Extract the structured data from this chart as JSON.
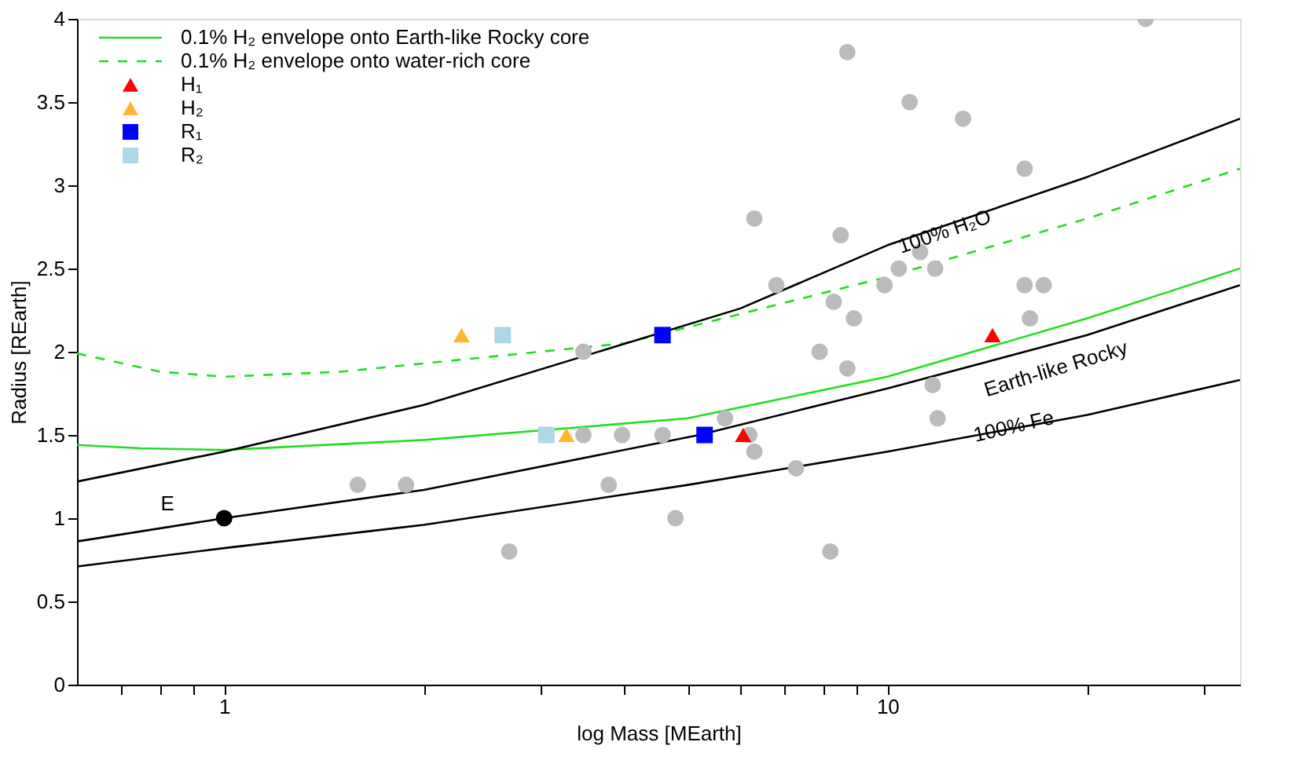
{
  "chart_data": {
    "type": "scatter",
    "xlabel": "log Mass [MEarth]",
    "ylabel": "Radius [REarth]",
    "log": "x",
    "xlim": [
      0.6,
      34
    ],
    "ylim": [
      0,
      4
    ],
    "xticks": [
      {
        "value": 0.7,
        "label": null
      },
      {
        "value": 0.8,
        "label": null
      },
      {
        "value": 0.9,
        "label": null
      },
      1,
      {
        "value": 2,
        "label": null
      },
      {
        "value": 3,
        "label": null
      },
      {
        "value": 4,
        "label": null
      },
      {
        "value": 5,
        "label": null
      },
      {
        "value": 6,
        "label": null
      },
      {
        "value": 7,
        "label": null
      },
      {
        "value": 8,
        "label": null
      },
      {
        "value": 9,
        "label": null
      },
      10,
      {
        "value": 20,
        "label": null
      },
      {
        "value": 30,
        "label": null
      }
    ],
    "yticks": [
      0,
      0.5,
      1,
      1.5,
      2,
      2.5,
      3,
      3.5,
      4
    ],
    "grid": false,
    "legend": "top left",
    "series": [
      {
        "name": "0.1% H₂ envelope onto Earth-like Rocky core",
        "type": "line",
        "line_style": "solid",
        "color": "#22dd22",
        "x": [
          0.6,
          0.75,
          1,
          2,
          5,
          10,
          20,
          34
        ],
        "values": [
          1.44,
          1.42,
          1.41,
          1.47,
          1.6,
          1.85,
          2.2,
          2.5
        ]
      },
      {
        "name": "0.1% H₂ envelope onto water-rich core",
        "type": "line",
        "line_style": "dashed",
        "color": "#22dd22",
        "x": [
          0.6,
          0.8,
          1,
          1.5,
          2,
          4,
          10,
          20,
          34
        ],
        "values": [
          1.99,
          1.88,
          1.85,
          1.88,
          1.93,
          2.05,
          2.45,
          2.8,
          3.1
        ]
      },
      {
        "type": "line",
        "line_style": "solid",
        "color": "#000000",
        "x": [
          0.6,
          1,
          2,
          6,
          10,
          20,
          34
        ],
        "values": [
          1.22,
          1.4,
          1.68,
          2.26,
          2.64,
          3.05,
          3.4
        ]
      },
      {
        "type": "line",
        "line_style": "solid",
        "color": "#000000",
        "x": [
          0.6,
          1,
          2,
          5.2,
          10,
          20,
          34
        ],
        "values": [
          0.86,
          1.0,
          1.17,
          1.5,
          1.78,
          2.1,
          2.4
        ]
      },
      {
        "type": "line",
        "line_style": "solid",
        "color": "#000000",
        "x": [
          0.6,
          1,
          2,
          5,
          10,
          20,
          34
        ],
        "values": [
          0.71,
          0.82,
          0.96,
          1.2,
          1.4,
          1.62,
          1.83
        ]
      },
      {
        "marker": "circle",
        "color": "#bbbbbb",
        "x": [
          1.59,
          1.88,
          2.69,
          3.48,
          3.48,
          3.98,
          4.58,
          5.69,
          6.19,
          6.3,
          7.28,
          3.8,
          4.79,
          8.2,
          11.7,
          11.9,
          24.5,
          8.7,
          10.8,
          13.0,
          16.1,
          6.3,
          8.5,
          11.2,
          10.4,
          11.8,
          6.8,
          9.9,
          16.1,
          17.2,
          8.3,
          8.9,
          16.4,
          7.9,
          8.7
        ],
        "values": [
          1.2,
          1.2,
          0.8,
          1.5,
          2.0,
          1.5,
          1.5,
          1.6,
          1.5,
          1.4,
          1.3,
          1.2,
          1.0,
          0.8,
          1.8,
          1.6,
          4.0,
          3.8,
          3.5,
          3.4,
          3.1,
          2.8,
          2.7,
          2.6,
          2.5,
          2.5,
          2.4,
          2.4,
          2.4,
          2.4,
          2.3,
          2.2,
          2.2,
          2.0,
          1.9
        ]
      },
      {
        "marker": "circle",
        "color": "#000000",
        "x": [
          1
        ],
        "values": [
          1.0
        ]
      },
      {
        "name": "H₁",
        "marker": "triangle",
        "color": "#ff0000",
        "x": [
          14.4,
          6.06
        ],
        "values": [
          2.1,
          1.5
        ]
      },
      {
        "name": "H₂",
        "marker": "triangle",
        "color": "#ffb52e",
        "x": [
          2.28,
          3.28
        ],
        "values": [
          2.1,
          1.5
        ]
      },
      {
        "name": "R₁",
        "marker": "square",
        "color": "#0000ff",
        "x": [
          4.58,
          5.3
        ],
        "values": [
          2.1,
          1.5
        ]
      },
      {
        "name": "R₂",
        "marker": "square",
        "color": "#add8e6",
        "x": [
          2.63,
          3.06
        ],
        "values": [
          2.1,
          1.5
        ]
      }
    ],
    "annotations": [
      {
        "text": "100% H₂O",
        "x": 12.2,
        "y": 2.72
      },
      {
        "text": "Earth-like Rocky",
        "x": 17.5,
        "y": 2.04
      },
      {
        "text": "100% Fe",
        "x": 15.5,
        "y": 1.55
      },
      {
        "text": "E",
        "x": 1,
        "y": 1.0
      }
    ]
  }
}
